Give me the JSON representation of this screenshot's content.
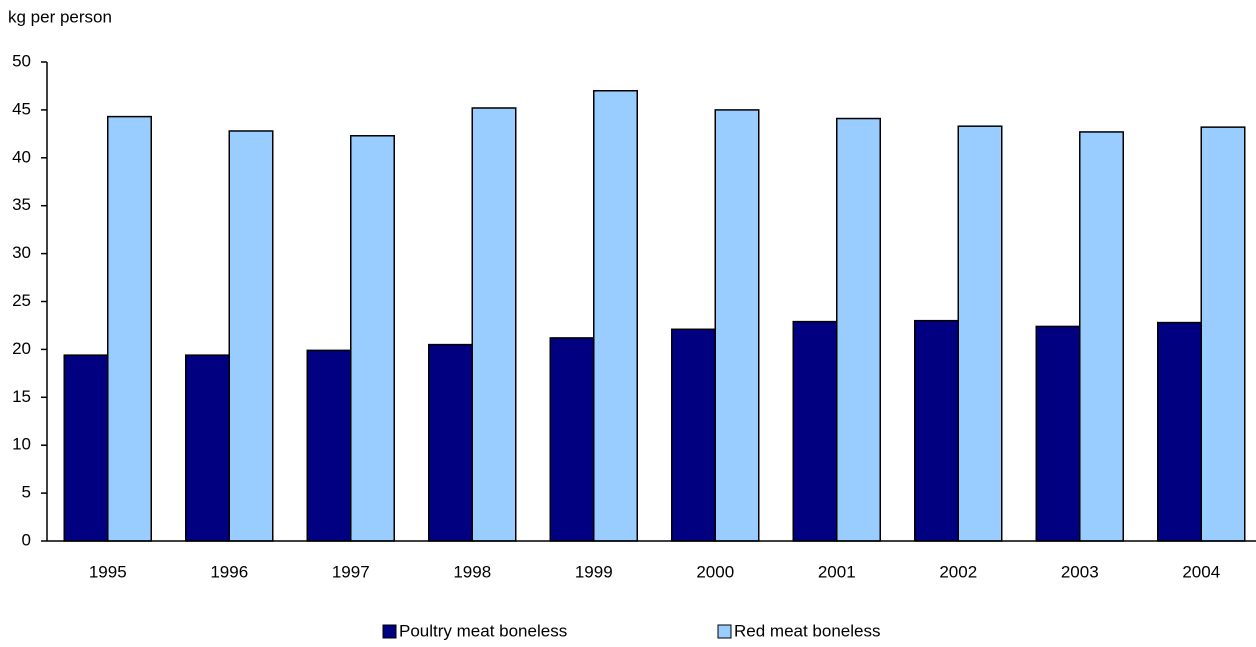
{
  "chart_data": {
    "type": "bar",
    "y_label": "kg per person",
    "categories": [
      "1995",
      "1996",
      "1997",
      "1998",
      "1999",
      "2000",
      "2001",
      "2002",
      "2003",
      "2004"
    ],
    "series": [
      {
        "name": "Poultry meat boneless",
        "color": "#000080",
        "values": [
          19.4,
          19.4,
          19.9,
          20.5,
          21.2,
          22.1,
          22.9,
          23.0,
          22.4,
          22.8
        ]
      },
      {
        "name": "Red meat boneless",
        "color": "#99ccff",
        "values": [
          44.3,
          42.8,
          42.3,
          45.2,
          47.0,
          45.0,
          44.1,
          43.3,
          42.7,
          43.2
        ]
      }
    ],
    "ylim": [
      0,
      50
    ],
    "yticks": [
      0,
      5,
      10,
      15,
      20,
      25,
      30,
      35,
      40,
      45,
      50
    ],
    "grid": false
  }
}
